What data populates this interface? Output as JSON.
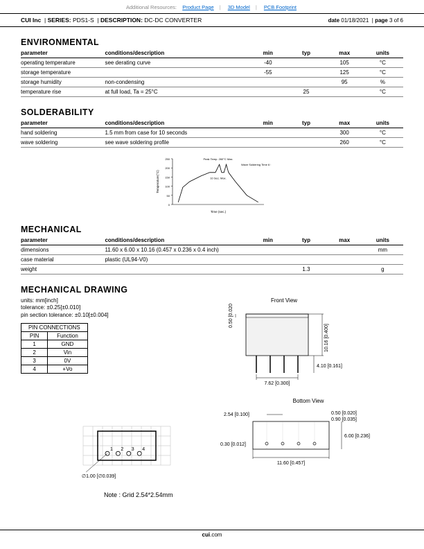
{
  "topbar": {
    "label": "Additional Resources:",
    "links": [
      "Product Page",
      "3D Model",
      "PCB Footprint"
    ]
  },
  "infobar": {
    "company": "CUI Inc",
    "series_label": "SERIES:",
    "series_value": "PDS1-S",
    "desc_label": "DESCRIPTION:",
    "desc_value": "DC-DC CONVERTER",
    "date_label": "date",
    "date_value": "01/18/2021",
    "page_label": "page",
    "page_value": "3 of 6"
  },
  "sections": {
    "environmental": {
      "title": "ENVIRONMENTAL",
      "headers": [
        "parameter",
        "conditions/description",
        "min",
        "typ",
        "max",
        "units"
      ],
      "rows": [
        [
          "operating temperature",
          "see derating curve",
          "-40",
          "",
          "105",
          "°C"
        ],
        [
          "storage temperature",
          "",
          "-55",
          "",
          "125",
          "°C"
        ],
        [
          "storage humidity",
          "non-condensing",
          "",
          "",
          "95",
          "%"
        ],
        [
          "temperature rise",
          "at full load, Ta = 25°C",
          "",
          "25",
          "",
          "°C"
        ]
      ]
    },
    "solderability": {
      "title": "SOLDERABILITY",
      "headers": [
        "parameter",
        "conditions/description",
        "min",
        "typ",
        "max",
        "units"
      ],
      "rows": [
        [
          "hand soldering",
          "1.5 mm from case for 10 seconds",
          "",
          "",
          "300",
          "°C"
        ],
        [
          "wave soldering",
          "see wave soldering profile",
          "",
          "",
          "260",
          "°C"
        ]
      ]
    },
    "mechanical": {
      "title": "MECHANICAL",
      "headers": [
        "parameter",
        "conditions/description",
        "min",
        "typ",
        "max",
        "units"
      ],
      "rows": [
        [
          "dimensions",
          "11.60 x 6.00 x 10.16 (0.457 x 0.236 x 0.4 inch)",
          "",
          "",
          "",
          "mm"
        ],
        [
          "case material",
          "plastic (UL94-V0)",
          "",
          "",
          "",
          ""
        ],
        [
          "weight",
          "",
          "",
          "1.3",
          "",
          "g"
        ]
      ]
    },
    "mechdraw": {
      "title": "MECHANICAL DRAWING"
    }
  },
  "notes": {
    "line1": "units: mm[inch]",
    "line2": "tolerance: ±0.25[±0.010]",
    "line3": "pin section tolerance: ±0.10[±0.004]"
  },
  "pin_table": {
    "title": "PIN CONNECTIONS",
    "headers": [
      "PIN",
      "Function"
    ],
    "rows": [
      [
        "1",
        "GND"
      ],
      [
        "2",
        "Vin"
      ],
      [
        "3",
        "0V"
      ],
      [
        "4",
        "+Vo"
      ]
    ]
  },
  "wave_graph": {
    "type": "line",
    "width": 170,
    "height": 90,
    "xlabel": "Time (sec.)",
    "ylabel": "Temperature(°C)",
    "peak_label": "Peak Temp. 260°C Max.",
    "wave_label": "Wave Soldering Time 6 Sec. Max.",
    "bracket_label": "10 Sec. Max.",
    "yticks": [
      0,
      50,
      100,
      150,
      200,
      250
    ],
    "axis_color": "#000000",
    "grid_color": "#cccccc",
    "line_color": "#000000",
    "line_width": 0.8,
    "path_points": [
      [
        10,
        76
      ],
      [
        18,
        50
      ],
      [
        30,
        40
      ],
      [
        50,
        30
      ],
      [
        65,
        24
      ],
      [
        75,
        24
      ],
      [
        82,
        10
      ],
      [
        86,
        24
      ],
      [
        90,
        24
      ],
      [
        94,
        10
      ],
      [
        98,
        24
      ],
      [
        110,
        40
      ],
      [
        130,
        64
      ],
      [
        150,
        76
      ]
    ]
  },
  "front_view": {
    "label": "Front View",
    "dims": {
      "height_body": "0.50 [0.020]",
      "height_total": "10.16 [0.400]",
      "pin_len": "4.10 [0.161]",
      "pin_span": "7.62 [0.300]"
    },
    "body_color": "#f2f2f2",
    "line_color": "#000000"
  },
  "bottom_view": {
    "label": "Bottom View",
    "dims": {
      "pitch": "2.54 [0.100]",
      "pin_w": "0.50 [0.020]",
      "pin_off": "0.90 [0.035]",
      "edge": "0.30 [0.012]",
      "depth": "6.00 [0.236]",
      "length": "11.60 [0.457]"
    }
  },
  "grid_view": {
    "pin_dia": "∅1.00 [∅0.039]",
    "note": "Note : Grid 2.54*2.54mm"
  },
  "footer": {
    "brand": "cui",
    "suffix": ".com"
  }
}
